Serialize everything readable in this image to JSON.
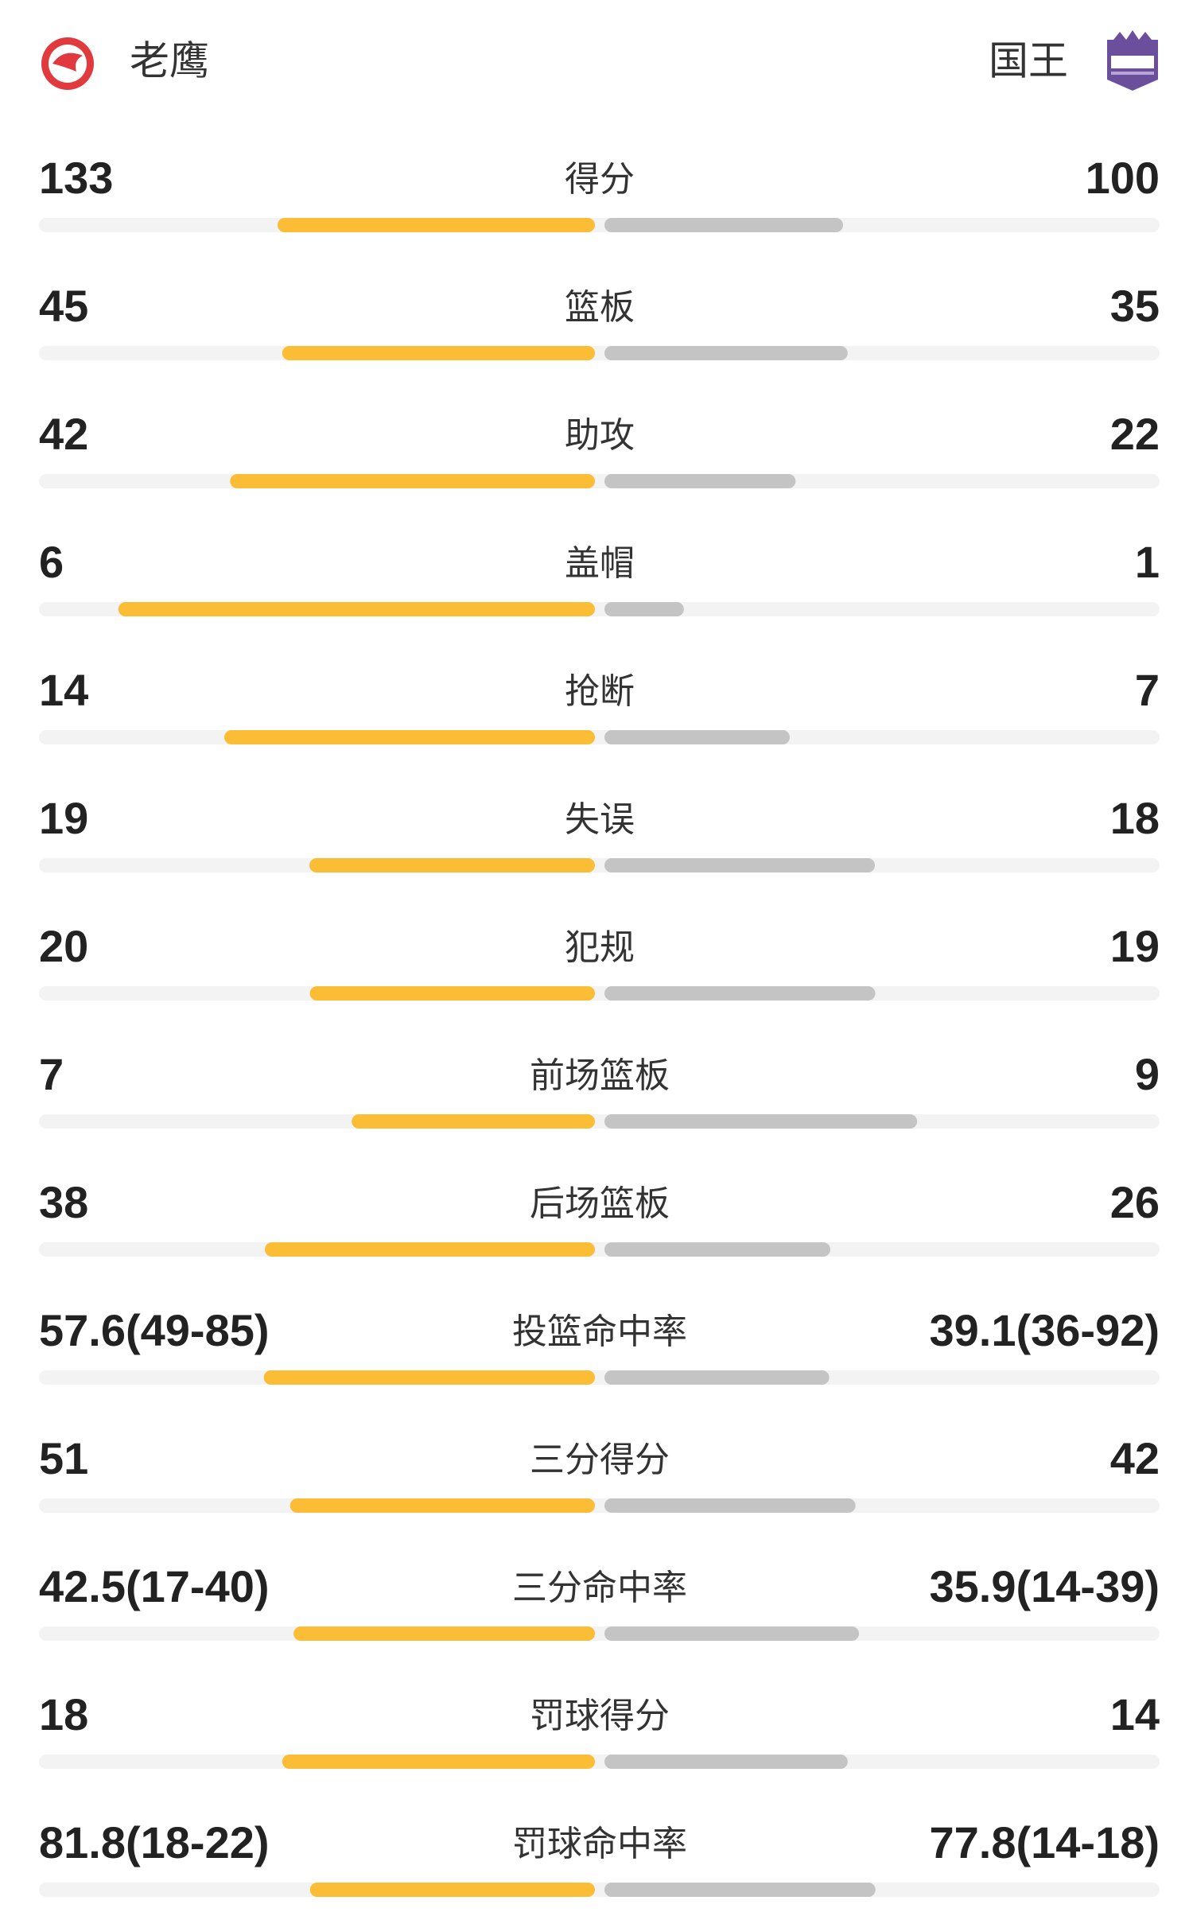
{
  "header": {
    "home_team": "老鹰",
    "away_team": "国王"
  },
  "stats": [
    {
      "label": "得分",
      "home": 133,
      "away": 100
    },
    {
      "label": "篮板",
      "home": 45,
      "away": 35
    },
    {
      "label": "助攻",
      "home": 42,
      "away": 22
    },
    {
      "label": "盖帽",
      "home": 6,
      "away": 1
    },
    {
      "label": "抢断",
      "home": 14,
      "away": 7
    },
    {
      "label": "失误",
      "home": 19,
      "away": 18
    },
    {
      "label": "犯规",
      "home": 20,
      "away": 19
    },
    {
      "label": "前场篮板",
      "home": 7,
      "away": 9
    },
    {
      "label": "后场篮板",
      "home": 38,
      "away": 26
    },
    {
      "label": "投篮命中率",
      "home": {
        "value": 57.6,
        "label": "57.6(49-85)"
      },
      "away": {
        "value": 39.1,
        "label": "39.1(36-92)"
      }
    },
    {
      "label": "三分得分",
      "home": 51,
      "away": 42
    },
    {
      "label": "三分命中率",
      "home": {
        "value": 42.5,
        "label": "42.5(17-40)"
      },
      "away": {
        "value": 35.9,
        "label": "35.9(14-39)"
      }
    },
    {
      "label": "罚球得分",
      "home": 18,
      "away": 14
    },
    {
      "label": "罚球命中率",
      "home": {
        "value": 81.8,
        "label": "81.8(18-22)"
      },
      "away": {
        "value": 77.8,
        "label": "77.8(14-18)"
      }
    }
  ]
}
